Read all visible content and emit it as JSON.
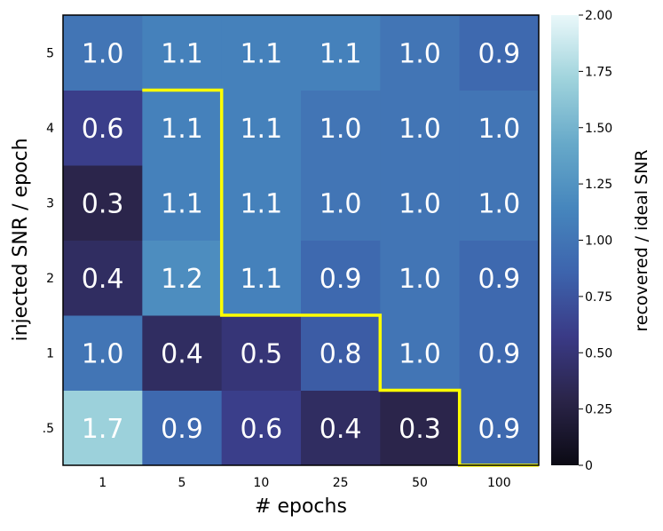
{
  "chart_data": {
    "type": "heatmap",
    "title": "",
    "xlabel": "# epochs",
    "ylabel": "injected SNR / epoch",
    "x_categories": [
      "1",
      "5",
      "10",
      "25",
      "50",
      "100"
    ],
    "y_categories": [
      ".5",
      "1",
      "2",
      "3",
      "4",
      "5"
    ],
    "values": [
      [
        1.7,
        0.9,
        0.6,
        0.4,
        0.3,
        0.9
      ],
      [
        1.0,
        0.4,
        0.5,
        0.8,
        1.0,
        0.9
      ],
      [
        0.4,
        1.2,
        1.1,
        0.9,
        1.0,
        0.9
      ],
      [
        0.3,
        1.1,
        1.1,
        1.0,
        1.0,
        1.0
      ],
      [
        0.6,
        1.1,
        1.1,
        1.0,
        1.0,
        1.0
      ],
      [
        1.0,
        1.1,
        1.1,
        1.1,
        1.0,
        0.9
      ]
    ],
    "value_labels": [
      [
        "1.7",
        "0.9",
        "0.6",
        "0.4",
        "0.3",
        "0.9"
      ],
      [
        "1.0",
        "0.4",
        "0.5",
        "0.8",
        "1.0",
        "0.9"
      ],
      [
        "0.4",
        "1.2",
        "1.1",
        "0.9",
        "1.0",
        "0.9"
      ],
      [
        "0.3",
        "1.1",
        "1.1",
        "1.0",
        "1.0",
        "1.0"
      ],
      [
        "0.6",
        "1.1",
        "1.1",
        "1.0",
        "1.0",
        "1.0"
      ],
      [
        "1.0",
        "1.1",
        "1.1",
        "1.1",
        "1.0",
        "0.9"
      ]
    ],
    "colorbar": {
      "label": "recovered / ideal SNR",
      "range": [
        0,
        2.0
      ],
      "ticks": [
        0,
        0.25,
        0.5,
        0.75,
        1.0,
        1.25,
        1.5,
        1.75,
        2.0
      ],
      "tick_labels": [
        "0",
        "0.25",
        "0.50",
        "0.75",
        "1.00",
        "1.25",
        "1.50",
        "1.75",
        "2.00"
      ],
      "colors": [
        "#0b0a14",
        "#2a2448",
        "#3a3a86",
        "#3d64ad",
        "#4686bd",
        "#67a9c9",
        "#9fd3dc",
        "#eaf8fa"
      ]
    },
    "boundary_color": "#ffff00",
    "boundary_path": [
      [
        1,
        5
      ],
      [
        2,
        5
      ],
      [
        2,
        2
      ],
      [
        4,
        2
      ],
      [
        4,
        1
      ],
      [
        5,
        1
      ],
      [
        5,
        0
      ],
      [
        6,
        0
      ]
    ]
  }
}
